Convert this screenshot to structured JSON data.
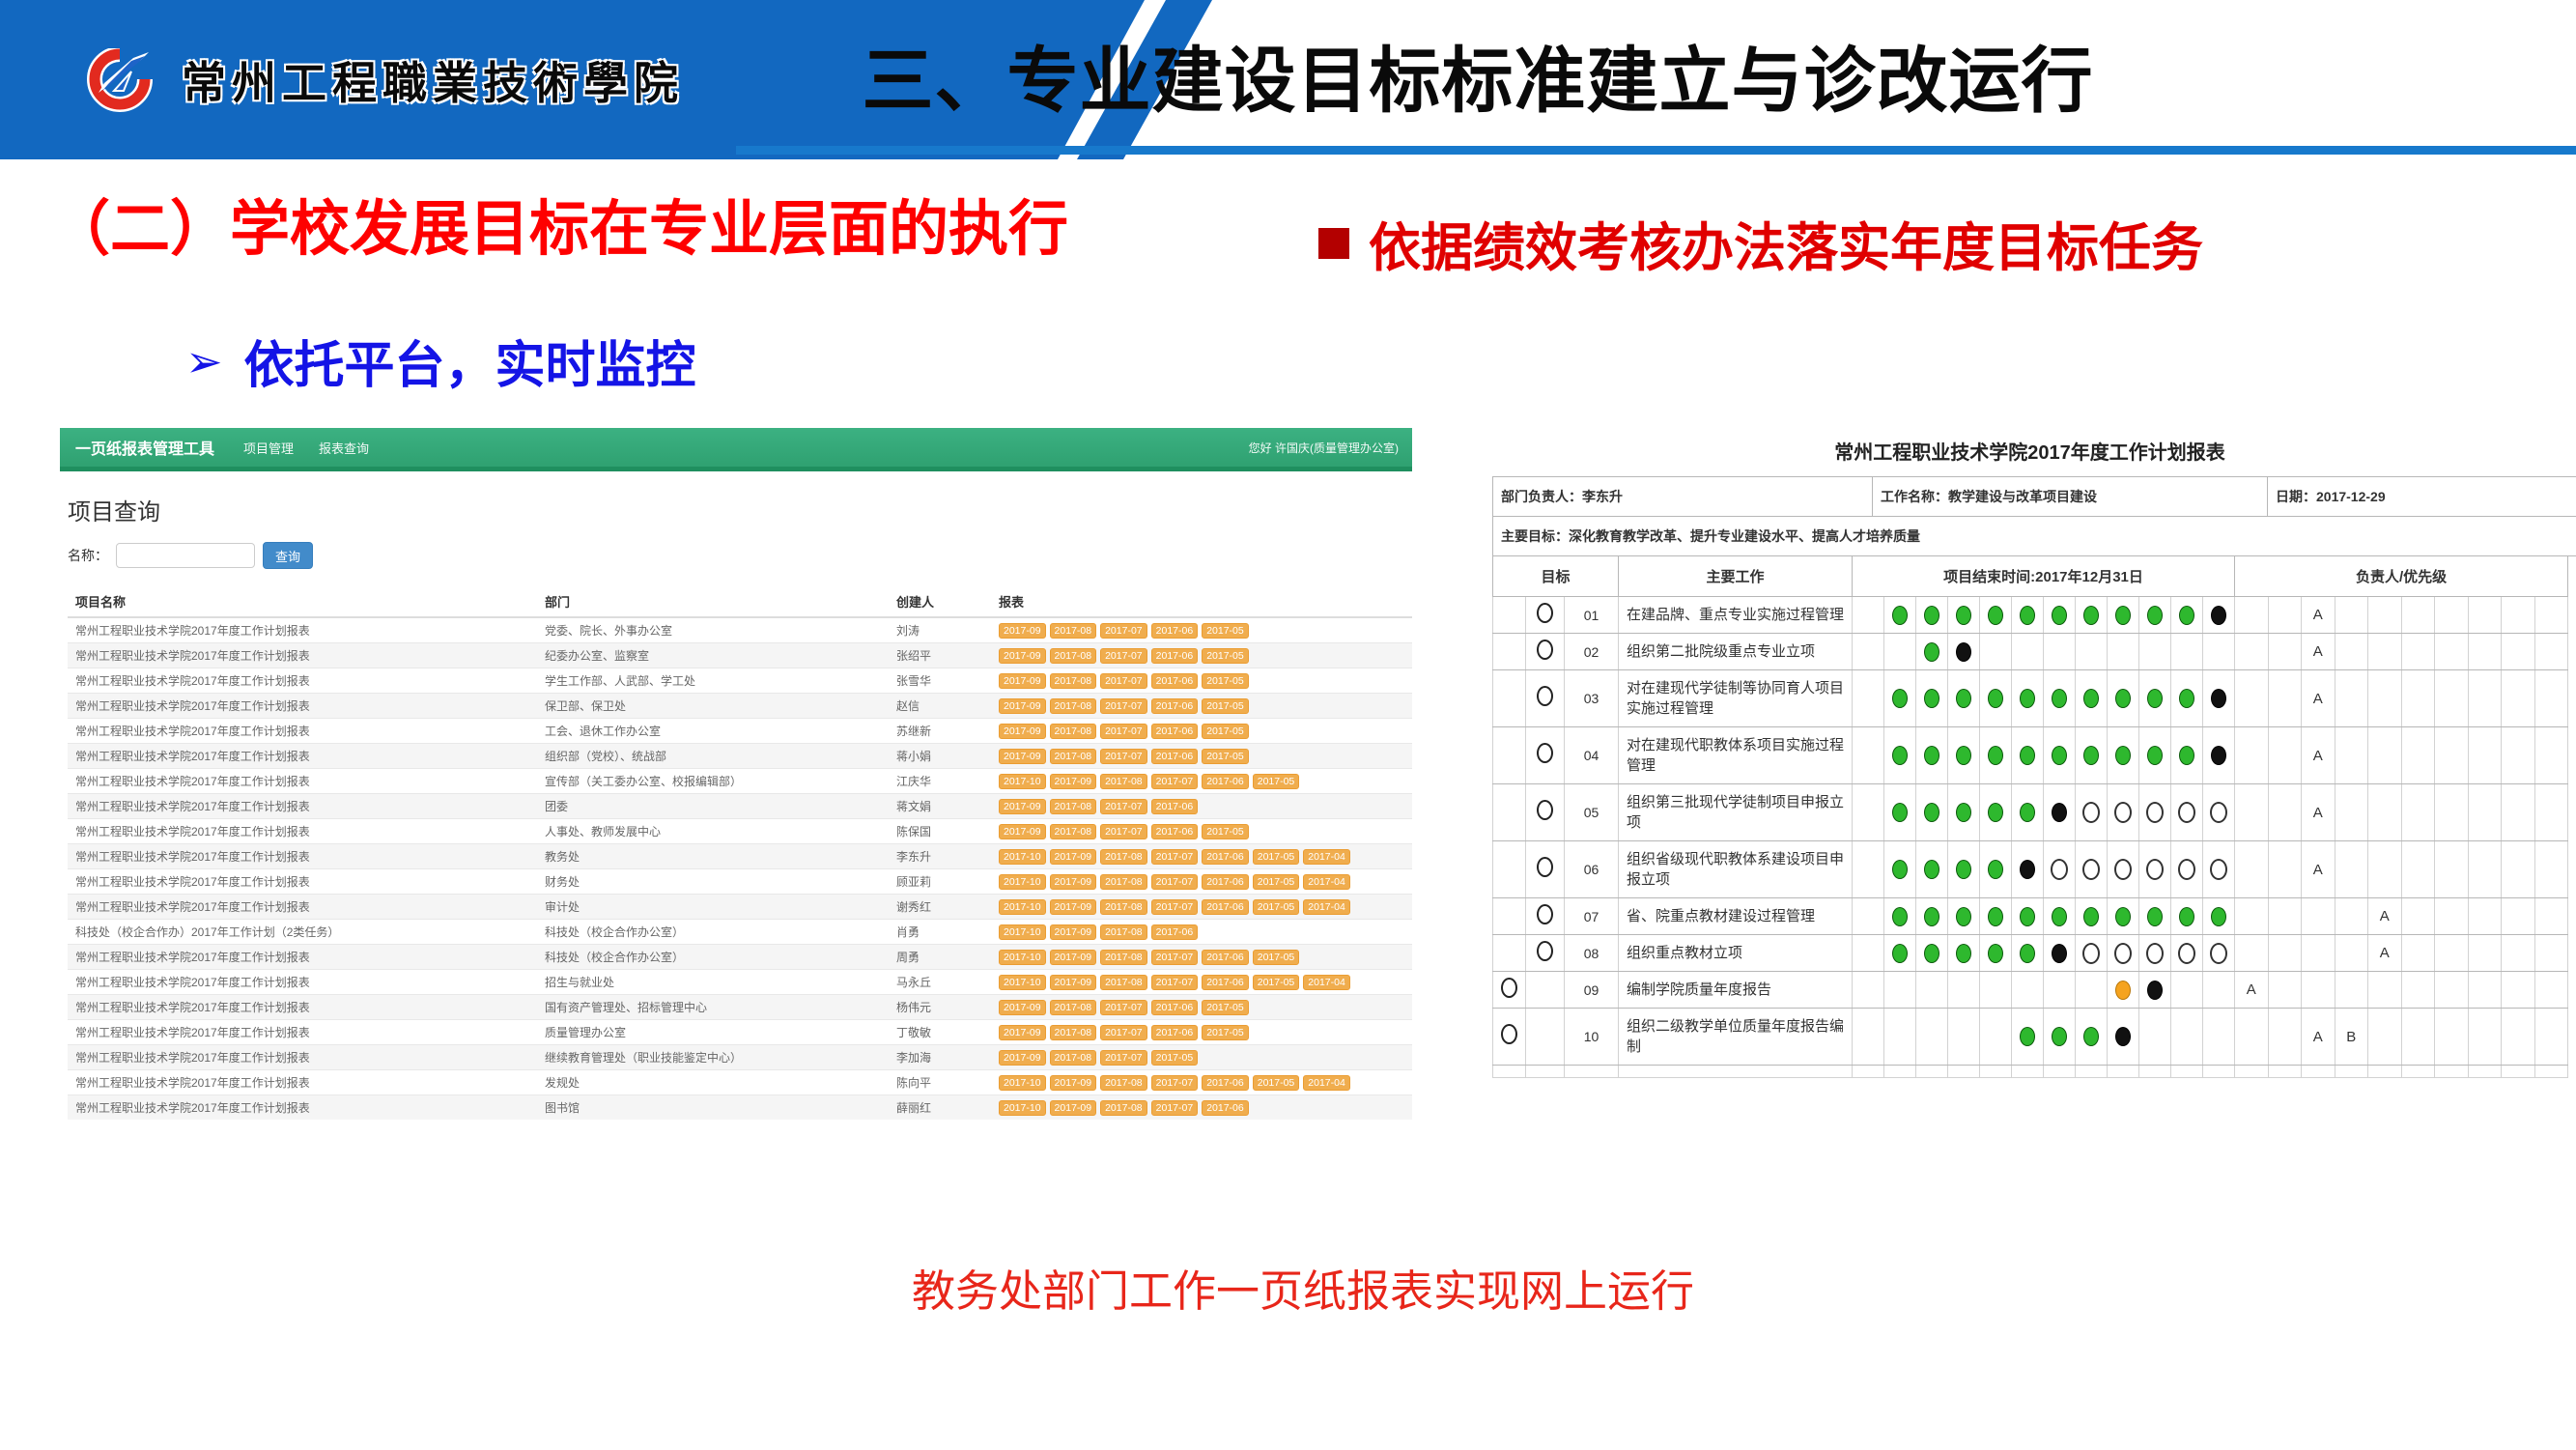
{
  "slide": {
    "school_name": "常州工程職業技術學院",
    "section_title": "三、专业建设目标标准建立与诊改运行",
    "heading": "（二）学校发展目标在专业层面的执行",
    "bullet_right": "依据绩效考核办法落实年度目标任务",
    "bullet_platform": "依托平台，实时监控",
    "arrow_glyph": "➢",
    "caption": "教务处部门工作一页纸报表实现网上运行",
    "colors": {
      "banner_blue": "#1268c0",
      "rule_blue": "#1779cc",
      "heading_red": "#fe0000",
      "bullet_red": "#e00000",
      "bullet_blue": "#1414e6",
      "caption_red": "#e8261a",
      "navbar_green": "#2fa171",
      "badge_orange": "#f0ad4e",
      "button_blue": "#428bca",
      "dot_green": "#2eb82e",
      "dot_orange": "#f5a31f"
    }
  },
  "report_tool": {
    "navbar": {
      "brand": "一页纸报表管理工具",
      "menu": [
        "项目管理",
        "报表查询"
      ],
      "user": "您好 许国庆(质量管理办公室)"
    },
    "query": {
      "heading": "项目查询",
      "name_label": "名称：",
      "input_value": "",
      "search_button": "查询"
    },
    "table": {
      "headers": [
        "项目名称",
        "部门",
        "创建人",
        "报表"
      ],
      "rows": [
        {
          "name": "常州工程职业技术学院2017年度工作计划报表",
          "dept": "党委、院长、外事办公室",
          "creator": "刘涛",
          "badges": [
            "2017-09",
            "2017-08",
            "2017-07",
            "2017-06",
            "2017-05"
          ]
        },
        {
          "name": "常州工程职业技术学院2017年度工作计划报表",
          "dept": "纪委办公室、监察室",
          "creator": "张绍平",
          "badges": [
            "2017-09",
            "2017-08",
            "2017-07",
            "2017-06",
            "2017-05"
          ]
        },
        {
          "name": "常州工程职业技术学院2017年度工作计划报表",
          "dept": "学生工作部、人武部、学工处",
          "creator": "张雪华",
          "badges": [
            "2017-09",
            "2017-08",
            "2017-07",
            "2017-06",
            "2017-05"
          ]
        },
        {
          "name": "常州工程职业技术学院2017年度工作计划报表",
          "dept": "保卫部、保卫处",
          "creator": "赵信",
          "badges": [
            "2017-09",
            "2017-08",
            "2017-07",
            "2017-06",
            "2017-05"
          ]
        },
        {
          "name": "常州工程职业技术学院2017年度工作计划报表",
          "dept": "工会、退休工作办公室",
          "creator": "苏继新",
          "badges": [
            "2017-09",
            "2017-08",
            "2017-07",
            "2017-06",
            "2017-05"
          ]
        },
        {
          "name": "常州工程职业技术学院2017年度工作计划报表",
          "dept": "组织部（党校）、统战部",
          "creator": "蒋小娟",
          "badges": [
            "2017-09",
            "2017-08",
            "2017-07",
            "2017-06",
            "2017-05"
          ]
        },
        {
          "name": "常州工程职业技术学院2017年度工作计划报表",
          "dept": "宣传部（关工委办公室、校报编辑部）",
          "creator": "江庆华",
          "badges": [
            "2017-10",
            "2017-09",
            "2017-08",
            "2017-07",
            "2017-06",
            "2017-05"
          ]
        },
        {
          "name": "常州工程职业技术学院2017年度工作计划报表",
          "dept": "团委",
          "creator": "蒋文娟",
          "badges": [
            "2017-09",
            "2017-08",
            "2017-07",
            "2017-06"
          ]
        },
        {
          "name": "常州工程职业技术学院2017年度工作计划报表",
          "dept": "人事处、教师发展中心",
          "creator": "陈保国",
          "badges": [
            "2017-09",
            "2017-08",
            "2017-07",
            "2017-06",
            "2017-05"
          ]
        },
        {
          "name": "常州工程职业技术学院2017年度工作计划报表",
          "dept": "教务处",
          "creator": "李东升",
          "badges": [
            "2017-10",
            "2017-09",
            "2017-08",
            "2017-07",
            "2017-06",
            "2017-05",
            "2017-04"
          ]
        },
        {
          "name": "常州工程职业技术学院2017年度工作计划报表",
          "dept": "财务处",
          "creator": "顾亚莉",
          "badges": [
            "2017-10",
            "2017-09",
            "2017-08",
            "2017-07",
            "2017-06",
            "2017-05",
            "2017-04"
          ]
        },
        {
          "name": "常州工程职业技术学院2017年度工作计划报表",
          "dept": "审计处",
          "creator": "谢秀红",
          "badges": [
            "2017-10",
            "2017-09",
            "2017-08",
            "2017-07",
            "2017-06",
            "2017-05",
            "2017-04"
          ]
        },
        {
          "name": "科技处（校企合作办）2017年工作计划（2类任务）",
          "dept": "科技处（校企合作办公室）",
          "creator": "肖勇",
          "badges": [
            "2017-10",
            "2017-09",
            "2017-08",
            "2017-06"
          ]
        },
        {
          "name": "常州工程职业技术学院2017年度工作计划报表",
          "dept": "科技处（校企合作办公室）",
          "creator": "周勇",
          "badges": [
            "2017-10",
            "2017-09",
            "2017-08",
            "2017-07",
            "2017-06",
            "2017-05"
          ]
        },
        {
          "name": "常州工程职业技术学院2017年度工作计划报表",
          "dept": "招生与就业处",
          "creator": "马永丘",
          "badges": [
            "2017-10",
            "2017-09",
            "2017-08",
            "2017-07",
            "2017-06",
            "2017-05",
            "2017-04"
          ]
        },
        {
          "name": "常州工程职业技术学院2017年度工作计划报表",
          "dept": "国有资产管理处、招标管理中心",
          "creator": "杨伟元",
          "badges": [
            "2017-09",
            "2017-08",
            "2017-07",
            "2017-06",
            "2017-05"
          ]
        },
        {
          "name": "常州工程职业技术学院2017年度工作计划报表",
          "dept": "质量管理办公室",
          "creator": "丁敬敏",
          "badges": [
            "2017-09",
            "2017-08",
            "2017-07",
            "2017-06",
            "2017-05"
          ]
        },
        {
          "name": "常州工程职业技术学院2017年度工作计划报表",
          "dept": "继续教育管理处（职业技能鉴定中心）",
          "creator": "李加海",
          "badges": [
            "2017-09",
            "2017-08",
            "2017-07",
            "2017-05"
          ]
        },
        {
          "name": "常州工程职业技术学院2017年度工作计划报表",
          "dept": "发规处",
          "creator": "陈向平",
          "badges": [
            "2017-10",
            "2017-09",
            "2017-08",
            "2017-07",
            "2017-06",
            "2017-05",
            "2017-04"
          ]
        },
        {
          "name": "常州工程职业技术学院2017年度工作计划报表",
          "dept": "图书馆",
          "creator": "薛丽红",
          "badges": [
            "2017-10",
            "2017-09",
            "2017-08",
            "2017-07",
            "2017-06"
          ]
        }
      ]
    }
  },
  "plan_report": {
    "title": "常州工程职业技术学院2017年度工作计划报表",
    "info": {
      "manager": "部门负责人：李东升",
      "work": "工作名称：教学建设与改革项目建设",
      "date": "日期：2017-12-29",
      "goal": "主要目标：深化教育教学改革、提升专业建设水平、提高人才培养质量"
    },
    "headers": {
      "target": "目标",
      "work": "主要工作",
      "timeline": "项目结束时间:2017年12月31日",
      "owner": "负责人/优先级"
    },
    "grid": {
      "timeline_cols": 12,
      "priority_cols": 10
    },
    "dot_legend": {
      "g": "completed-green",
      "k": "current-black",
      "o": "planned-hollow",
      "O": "warning-orange",
      ".": "empty"
    },
    "rows": [
      {
        "no": "01",
        "task": "在建品牌、重点专业实施过程管理",
        "level": 2,
        "dots": ".ggggggggggk",
        "prio": {
          "3": "A"
        }
      },
      {
        "no": "02",
        "task": "组织第二批院级重点专业立项",
        "level": 2,
        "dots": "..gk........",
        "prio": {
          "3": "A"
        }
      },
      {
        "no": "03",
        "task": "对在建现代学徒制等协同育人项目实施过程管理",
        "level": 2,
        "dots": ".ggggggggggk",
        "prio": {
          "3": "A"
        }
      },
      {
        "no": "04",
        "task": "对在建现代职教体系项目实施过程管理",
        "level": 2,
        "dots": ".ggggggggggk",
        "prio": {
          "3": "A"
        }
      },
      {
        "no": "05",
        "task": "组织第三批现代学徒制项目申报立项",
        "level": 2,
        "dots": ".gggggkooooo",
        "prio": {
          "3": "A"
        }
      },
      {
        "no": "06",
        "task": "组织省级现代职教体系建设项目申报立项",
        "level": 2,
        "dots": ".ggggkoooooo",
        "prio": {
          "3": "A"
        }
      },
      {
        "no": "07",
        "task": "省、院重点教材建设过程管理",
        "level": 2,
        "dots": ".ggggggggggg",
        "prio": {
          "5": "A"
        }
      },
      {
        "no": "08",
        "task": "组织重点教材立项",
        "level": 2,
        "dots": ".gggggkooooo",
        "prio": {
          "5": "A"
        }
      },
      {
        "no": "09",
        "task": "编制学院质量年度报告",
        "level": 1,
        "dots": "........Ok..",
        "prio": {
          "1": "A"
        }
      },
      {
        "no": "10",
        "task": "组织二级教学单位质量年度报告编制",
        "level": 1,
        "dots": ".....gggk...",
        "prio": {
          "3": "A",
          "4": "B"
        }
      }
    ]
  }
}
